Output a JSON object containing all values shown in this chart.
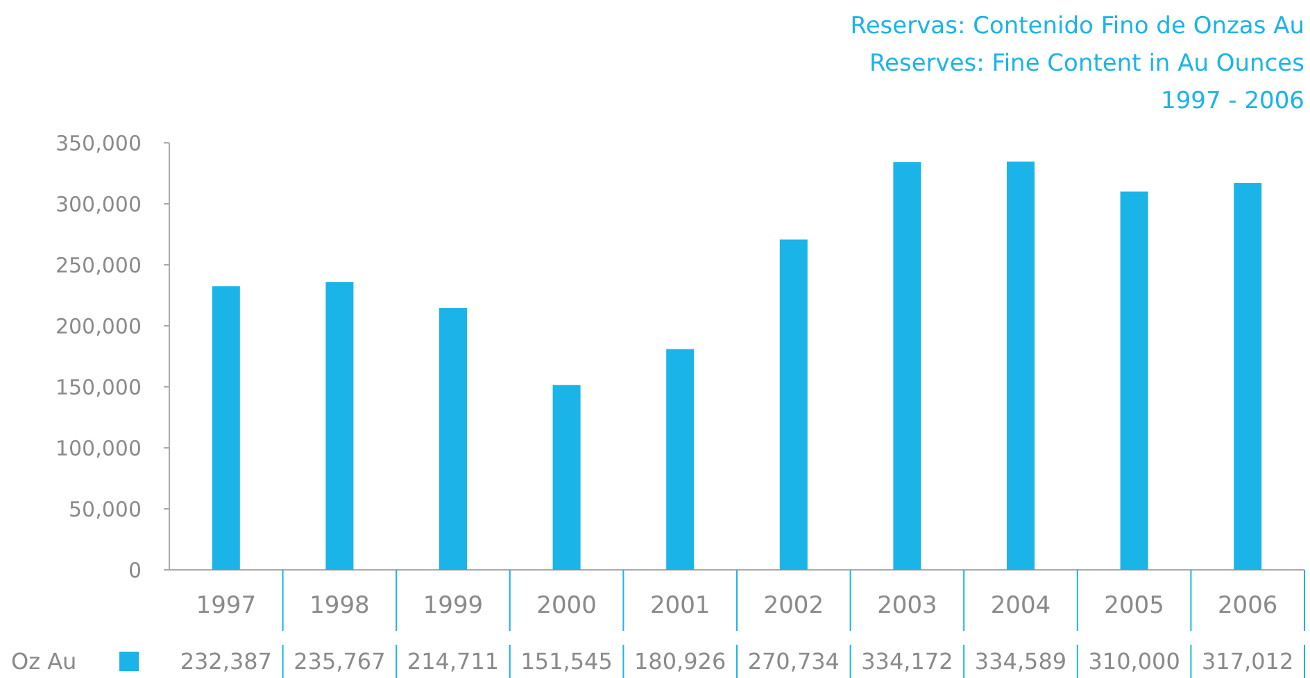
{
  "chart_data": {
    "type": "bar",
    "title": "Reservas: Contenido Fino de Onzas Au",
    "subtitle": "Reserves: Fine Content in Au Ounces",
    "annotations": [
      "1997 - 2006"
    ],
    "categories": [
      "1997",
      "1998",
      "1999",
      "2000",
      "2001",
      "2002",
      "2003",
      "2004",
      "2005",
      "2006"
    ],
    "series": [
      {
        "name": "Oz Au",
        "color": "#1ab4e8",
        "values": [
          232387,
          235767,
          214711,
          151545,
          180926,
          270734,
          334172,
          334589,
          310000,
          317012
        ],
        "value_labels": [
          "232,387",
          "235,767",
          "214,711",
          "151,545",
          "180,926",
          "270,734",
          "334,172",
          "334,589",
          "310,000",
          "317,012"
        ]
      }
    ],
    "ylim": [
      0,
      350000
    ],
    "yticks": [
      {
        "value": 0,
        "label": "0"
      },
      {
        "value": 50000,
        "label": "50,000"
      },
      {
        "value": 100000,
        "label": "100,000"
      },
      {
        "value": 150000,
        "label": "150,000"
      },
      {
        "value": 200000,
        "label": "200,000"
      },
      {
        "value": 250000,
        "label": "250,000"
      },
      {
        "value": 300000,
        "label": "300,000"
      },
      {
        "value": 350000,
        "label": "350,000"
      }
    ],
    "grid": false,
    "legend": "bottom left"
  }
}
